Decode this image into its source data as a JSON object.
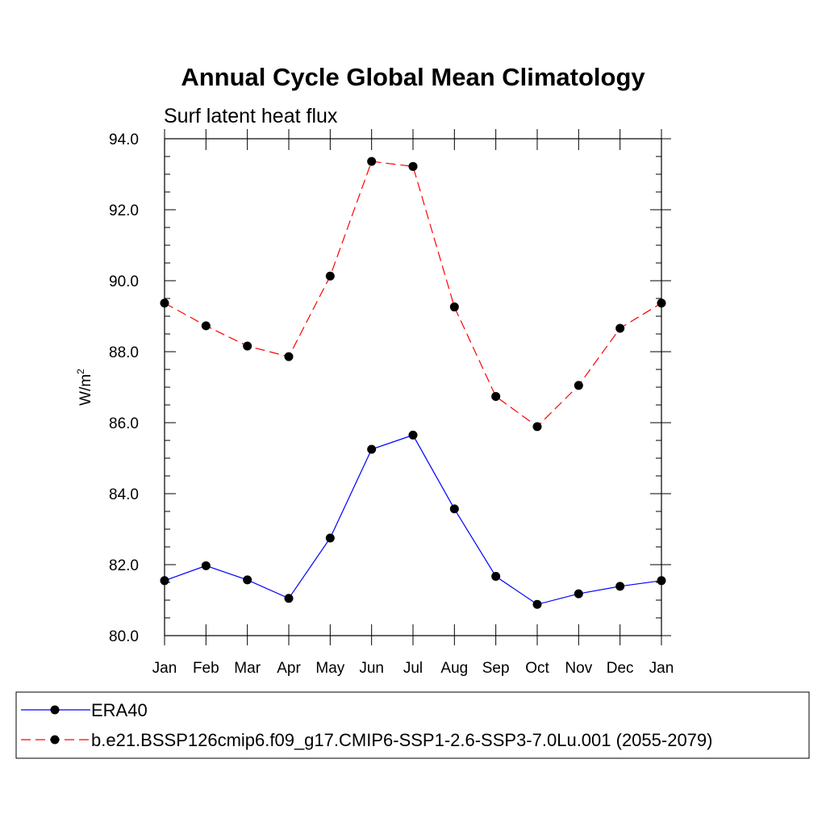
{
  "chart_data": {
    "type": "line",
    "title": "Annual Cycle Global Mean Climatology",
    "subtitle": "Surf latent heat flux",
    "ylabel": "W/m",
    "ylabel_superscript": "2",
    "xlabel": "",
    "categories": [
      "Jan",
      "Feb",
      "Mar",
      "Apr",
      "May",
      "Jun",
      "Jul",
      "Aug",
      "Sep",
      "Oct",
      "Nov",
      "Dec",
      "Jan"
    ],
    "ylim": [
      80.0,
      94.0
    ],
    "yticks": [
      "80.0",
      "82.0",
      "84.0",
      "86.0",
      "88.0",
      "90.0",
      "92.0",
      "94.0"
    ],
    "grid": false,
    "legend_position": "bottom",
    "series": [
      {
        "name": "ERA40",
        "color": "#0000ff",
        "line_style": "solid",
        "marker": "filled-circle",
        "values": [
          81.55,
          81.97,
          81.57,
          81.05,
          82.75,
          85.25,
          85.65,
          83.57,
          81.67,
          80.88,
          81.18,
          81.39,
          81.55
        ]
      },
      {
        "name": "b.e21.BSSP126cmip6.f09_g17.CMIP6-SSP1-2.6-SSP3-7.0Lu.001 (2055-2079)",
        "color": "#ff0000",
        "line_style": "dashed",
        "marker": "filled-circle",
        "values": [
          89.37,
          88.73,
          88.16,
          87.86,
          90.13,
          93.36,
          93.22,
          89.26,
          86.74,
          85.89,
          87.05,
          88.66,
          89.37
        ]
      }
    ]
  }
}
